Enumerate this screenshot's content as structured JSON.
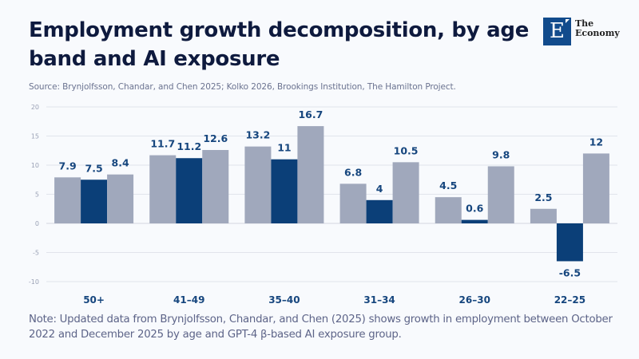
{
  "header": {
    "title": "Employment growth decomposition, by age band and AI exposure",
    "source": "Source: Brynjolfsson, Chandar, and Chen 2025; Kolko 2026, Brookings Institution, The Hamilton Project."
  },
  "logo": {
    "letter": "E",
    "line1": "The",
    "line2": "Economy"
  },
  "note": "Note: Updated data from Brynjolfsson, Chandar, and Chen (2025) shows growth in employment between October 2022 and December 2025 by age and GPT-4 β-based AI exposure group.",
  "colors": {
    "background": "#F8FAFD",
    "gray_bar": "#A0A8BC",
    "navy_bar": "#0B3F78",
    "label": "#16467E",
    "grid": "#E1E4EC"
  },
  "chart_data": {
    "type": "bar",
    "title": "Employment growth decomposition, by age band and AI exposure",
    "xlabel": "",
    "ylabel": "",
    "ylim": [
      -10,
      20
    ],
    "yticks": [
      20,
      15,
      10,
      5,
      0,
      -5,
      -10
    ],
    "ytick_labels": [
      "20",
      "15",
      "10",
      "5",
      "0",
      "-5",
      "-10"
    ],
    "grid": true,
    "legend": "none",
    "categories": [
      "50+",
      "41–49",
      "35–40",
      "31–34",
      "26–30",
      "22–25"
    ],
    "series": [
      {
        "name": "series-1",
        "color": "#A0A8BC",
        "values": [
          7.9,
          11.7,
          13.2,
          6.8,
          4.5,
          2.5
        ],
        "labels": [
          "7.9",
          "11.7",
          "13.2",
          "6.8",
          "4.5",
          "2.5"
        ]
      },
      {
        "name": "series-2",
        "color": "#0B3F78",
        "values": [
          7.5,
          11.2,
          11,
          4,
          0.6,
          -6.5
        ],
        "labels": [
          "7.5",
          "11.2",
          "11",
          "4",
          "0.6",
          "-6.5"
        ]
      },
      {
        "name": "series-3",
        "color": "#A0A8BC",
        "values": [
          8.4,
          12.6,
          16.7,
          10.5,
          9.8,
          12
        ],
        "labels": [
          "8.4",
          "12.6",
          "16.7",
          "10.5",
          "9.8",
          "12"
        ]
      }
    ]
  }
}
